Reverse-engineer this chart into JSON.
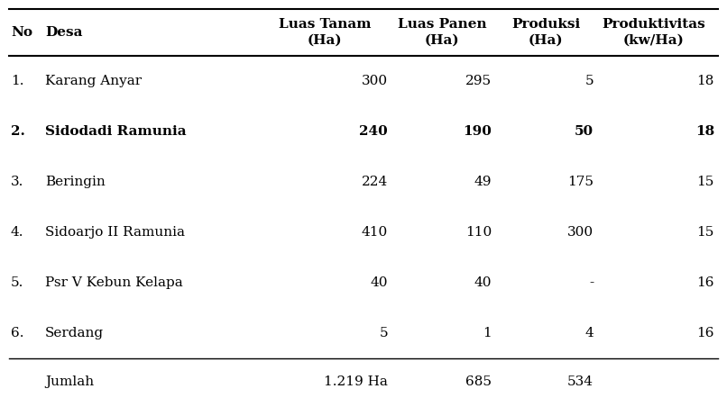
{
  "headers": [
    "No",
    "Desa",
    "Luas Tanam\n(Ha)",
    "Luas Panen\n(Ha)",
    "Produksi\n(Ha)",
    "Produktivitas\n(kw/Ha)"
  ],
  "rows": [
    {
      "no": "1.",
      "desa": "Karang Anyar",
      "luas_tanam": "300",
      "luas_panen": "295",
      "produksi": "5",
      "produktivitas": "18",
      "bold": false
    },
    {
      "no": "2.",
      "desa": "Sidodadi Ramunia",
      "luas_tanam": "240",
      "luas_panen": "190",
      "produksi": "50",
      "produktivitas": "18",
      "bold": true
    },
    {
      "no": "3.",
      "desa": "Beringin",
      "luas_tanam": "224",
      "luas_panen": "49",
      "produksi": "175",
      "produktivitas": "15",
      "bold": false
    },
    {
      "no": "4.",
      "desa": "Sidoarjo II Ramunia",
      "luas_tanam": "410",
      "luas_panen": "110",
      "produksi": "300",
      "produktivitas": "15",
      "bold": false
    },
    {
      "no": "5.",
      "desa": "Psr V Kebun Kelapa",
      "luas_tanam": "40",
      "luas_panen": "40",
      "produksi": "-",
      "produktivitas": "16",
      "bold": false
    },
    {
      "no": "6.",
      "desa": "Serdang",
      "luas_tanam": "5",
      "luas_panen": "1",
      "produksi": "4",
      "produktivitas": "16",
      "bold": false
    }
  ],
  "footer": {
    "label": "Jumlah",
    "luas_tanam": "1.219 Ha",
    "luas_panen": "685",
    "produksi": "534"
  },
  "background_color": "#ffffff",
  "text_color": "#000000",
  "font_size": 11,
  "header_font_size": 11
}
